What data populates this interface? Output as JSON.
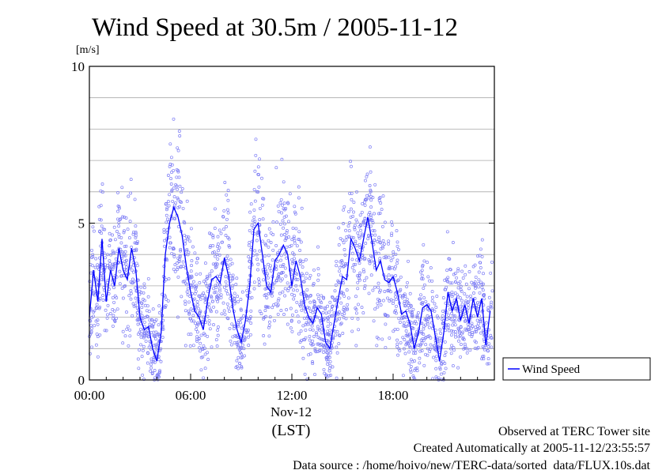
{
  "chart_data": {
    "type": "scatter",
    "title": "Wind Speed at 30.5m / 2005-11-12",
    "ylabel": "[m/s]",
    "ylim": [
      0,
      10
    ],
    "yticks": [
      "0",
      "5",
      "10"
    ],
    "xlim": [
      0,
      24
    ],
    "xticks": [
      "00:00",
      "06:00",
      "12:00",
      "18:00"
    ],
    "xlabel_date": "Nov-12",
    "xlabel_tz": "(LST)",
    "grid": true,
    "legend": {
      "position": "right",
      "entry": "Wind Speed"
    },
    "colors": {
      "points": "#7d7df5",
      "line": "#0000ff"
    },
    "series": [
      {
        "name": "Wind Speed",
        "x": [
          0.0,
          0.25,
          0.5,
          0.75,
          1.0,
          1.25,
          1.5,
          1.75,
          2.0,
          2.25,
          2.5,
          2.75,
          3.0,
          3.25,
          3.5,
          3.75,
          4.0,
          4.25,
          4.5,
          4.75,
          5.0,
          5.25,
          5.5,
          5.75,
          6.0,
          6.25,
          6.5,
          6.75,
          7.0,
          7.25,
          7.5,
          7.75,
          8.0,
          8.25,
          8.5,
          8.75,
          9.0,
          9.25,
          9.5,
          9.75,
          10.0,
          10.25,
          10.5,
          10.75,
          11.0,
          11.25,
          11.5,
          11.75,
          12.0,
          12.25,
          12.5,
          12.75,
          13.0,
          13.25,
          13.5,
          13.75,
          14.0,
          14.25,
          14.5,
          14.75,
          15.0,
          15.25,
          15.5,
          15.75,
          16.0,
          16.25,
          16.5,
          16.75,
          17.0,
          17.25,
          17.5,
          17.75,
          18.0,
          18.25,
          18.5,
          18.75,
          19.0,
          19.25,
          19.5,
          19.75,
          20.0,
          20.25,
          20.5,
          20.75,
          21.0,
          21.25,
          21.5,
          21.75,
          22.0,
          22.25,
          22.5,
          22.75,
          23.0,
          23.25,
          23.5,
          23.75
        ],
        "y": [
          2.0,
          3.5,
          2.5,
          4.5,
          2.5,
          3.5,
          3.0,
          4.2,
          3.5,
          3.2,
          4.2,
          3.5,
          2.0,
          1.6,
          1.7,
          1.0,
          0.6,
          1.5,
          4.0,
          5.0,
          5.5,
          5.2,
          4.6,
          3.6,
          2.8,
          2.2,
          2.0,
          1.6,
          2.5,
          3.2,
          3.3,
          3.1,
          3.9,
          3.3,
          2.3,
          1.6,
          1.2,
          1.9,
          3.0,
          4.8,
          5.0,
          4.0,
          3.0,
          2.8,
          3.8,
          4.0,
          4.3,
          4.0,
          3.0,
          3.8,
          3.3,
          2.4,
          2.0,
          1.8,
          2.3,
          2.1,
          1.2,
          1.0,
          1.8,
          2.6,
          3.3,
          3.2,
          4.5,
          4.2,
          3.8,
          4.5,
          5.2,
          4.4,
          3.5,
          3.8,
          3.2,
          3.1,
          3.3,
          2.8,
          2.1,
          2.2,
          1.8,
          1.0,
          1.5,
          2.3,
          2.4,
          2.2,
          1.4,
          0.6,
          1.5,
          2.8,
          2.2,
          2.6,
          1.9,
          2.4,
          1.8,
          2.6,
          2.0,
          2.6,
          1.1,
          2.2
        ]
      }
    ]
  },
  "legend_label": "Wind Speed",
  "footer": {
    "line1": "Observed at TERC Tower site",
    "line2": "Created Automatically at 2005-11-12/23:55:57",
    "line3": "Data source : /home/hoivo/new/TERC-data/sorted_data/FLUX.10s.dat"
  }
}
